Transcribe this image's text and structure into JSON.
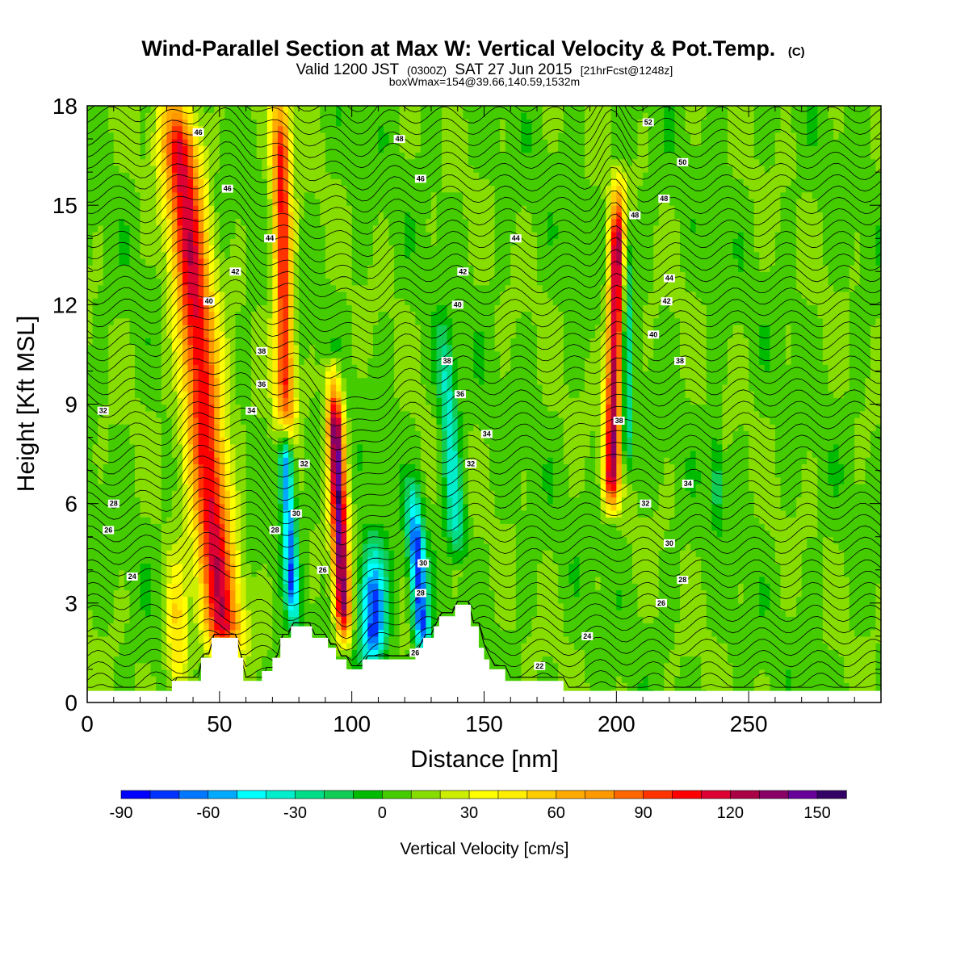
{
  "title": {
    "main": "Wind-Parallel Section at Max W: Vertical Velocity & Pot.Temp.",
    "copyright": "(C)",
    "valid_prefix": "Valid 1200 JST",
    "valid_z": "(0300Z)",
    "valid_date": "SAT 27 Jun 2015",
    "forecast": "[21hrFcst@1248z]",
    "box_info": "boxWmax=154@39.66,140.59,1532m"
  },
  "chart_data": {
    "type": "heatmap",
    "xlabel": "Distance [nm]",
    "ylabel": "Height [Kft MSL]",
    "xlim": [
      0,
      300
    ],
    "ylim": [
      0,
      18
    ],
    "x_ticks": [
      0,
      50,
      100,
      150,
      200,
      250
    ],
    "y_ticks": [
      0,
      3,
      6,
      9,
      12,
      15,
      18
    ],
    "colorbar": {
      "label": "Vertical Velocity [cm/s]",
      "min": -90,
      "max": 160,
      "step": 10,
      "ticks": [
        -90,
        -60,
        -30,
        0,
        30,
        60,
        90,
        120,
        150
      ],
      "colors": [
        "#0000ff",
        "#0033ff",
        "#0077ff",
        "#00aaff",
        "#00ffff",
        "#00eecc",
        "#00dd88",
        "#11cc55",
        "#00bb00",
        "#44cc00",
        "#88dd00",
        "#ccee00",
        "#ffff00",
        "#ffee00",
        "#ffcc00",
        "#ffaa00",
        "#ff9900",
        "#ff6600",
        "#ff3300",
        "#ff0000",
        "#dd0033",
        "#aa0044",
        "#880066",
        "#660099",
        "#330066"
      ]
    },
    "terrain_kft": [
      [
        0,
        0.35
      ],
      [
        32,
        0.35
      ],
      [
        32,
        0.65
      ],
      [
        43,
        0.65
      ],
      [
        43,
        1.35
      ],
      [
        47,
        1.35
      ],
      [
        47,
        1.95
      ],
      [
        57,
        1.95
      ],
      [
        57,
        1.35
      ],
      [
        59,
        1.35
      ],
      [
        59,
        0.65
      ],
      [
        66,
        0.65
      ],
      [
        66,
        0.95
      ],
      [
        70,
        0.95
      ],
      [
        70,
        1.35
      ],
      [
        73,
        1.35
      ],
      [
        73,
        1.95
      ],
      [
        77,
        1.95
      ],
      [
        77,
        2.3
      ],
      [
        85,
        2.3
      ],
      [
        85,
        1.95
      ],
      [
        91,
        1.95
      ],
      [
        91,
        1.65
      ],
      [
        94,
        1.65
      ],
      [
        94,
        1.3
      ],
      [
        98,
        1.3
      ],
      [
        98,
        1.0
      ],
      [
        104,
        1.0
      ],
      [
        104,
        1.3
      ],
      [
        124,
        1.3
      ],
      [
        124,
        1.65
      ],
      [
        127,
        1.65
      ],
      [
        127,
        1.95
      ],
      [
        131,
        1.95
      ],
      [
        131,
        2.3
      ],
      [
        133,
        2.3
      ],
      [
        133,
        2.6
      ],
      [
        139,
        2.6
      ],
      [
        139,
        2.95
      ],
      [
        145,
        2.95
      ],
      [
        145,
        2.3
      ],
      [
        148,
        2.3
      ],
      [
        148,
        1.65
      ],
      [
        150,
        1.65
      ],
      [
        150,
        1.3
      ],
      [
        152,
        1.3
      ],
      [
        152,
        1.0
      ],
      [
        158,
        1.0
      ],
      [
        158,
        0.65
      ],
      [
        180,
        0.65
      ],
      [
        180,
        0.35
      ],
      [
        300,
        0.35
      ]
    ],
    "updrafts": [
      {
        "x": 52,
        "z_bottom": 1.5,
        "z_top": 18,
        "peak": 105,
        "width": 7,
        "tilt": -1.1
      },
      {
        "x": 75,
        "z_bottom": 8.0,
        "z_top": 18,
        "peak": 95,
        "width": 3.5,
        "tilt": -0.2
      },
      {
        "x": 97,
        "z_bottom": 2.0,
        "z_top": 9.5,
        "peak": 135,
        "width": 3,
        "tilt": -0.5
      },
      {
        "x": 198,
        "z_bottom": 6.0,
        "z_top": 15.2,
        "peak": 120,
        "width": 3,
        "tilt": 0.3
      },
      {
        "x": 34,
        "z_bottom": 0.5,
        "z_top": 4.0,
        "peak": 45,
        "width": 4,
        "tilt": 0
      }
    ],
    "downdrafts": [
      {
        "x": 78,
        "z_bottom": 2.5,
        "z_top": 8.5,
        "peak": -70,
        "width": 2.5,
        "tilt": -0.6
      },
      {
        "x": 108,
        "z_bottom": 1.2,
        "z_top": 4.5,
        "peak": -85,
        "width": 5,
        "tilt": 0
      },
      {
        "x": 127,
        "z_bottom": 1.5,
        "z_top": 6.0,
        "peak": -85,
        "width": 3,
        "tilt": -0.8
      },
      {
        "x": 140,
        "z_bottom": 4.5,
        "z_top": 11.0,
        "peak": -45,
        "width": 3.5,
        "tilt": -0.8
      },
      {
        "x": 204,
        "z_bottom": 7.0,
        "z_top": 14.5,
        "peak": -40,
        "width": 2,
        "tilt": 0
      },
      {
        "x": 238,
        "z_bottom": 5.5,
        "z_top": 8.0,
        "peak": -30,
        "width": 2,
        "tilt": 0
      }
    ],
    "theta_contours": {
      "min": 22,
      "max": 52,
      "interval": 0.5,
      "labels": [
        {
          "text": "46",
          "x": 42,
          "z": 17.2
        },
        {
          "text": "46",
          "x": 53,
          "z": 15.5
        },
        {
          "text": "44",
          "x": 69,
          "z": 14.0
        },
        {
          "text": "42",
          "x": 56,
          "z": 13.0
        },
        {
          "text": "40",
          "x": 46,
          "z": 12.1
        },
        {
          "text": "38",
          "x": 66,
          "z": 10.6
        },
        {
          "text": "36",
          "x": 66,
          "z": 9.6
        },
        {
          "text": "34",
          "x": 62,
          "z": 8.8
        },
        {
          "text": "32",
          "x": 6,
          "z": 8.8
        },
        {
          "text": "32",
          "x": 82,
          "z": 7.2
        },
        {
          "text": "30",
          "x": 79,
          "z": 5.7
        },
        {
          "text": "28",
          "x": 71,
          "z": 5.2
        },
        {
          "text": "28",
          "x": 10,
          "z": 6.0
        },
        {
          "text": "26",
          "x": 8,
          "z": 5.2
        },
        {
          "text": "24",
          "x": 17,
          "z": 3.8
        },
        {
          "text": "26",
          "x": 89,
          "z": 4.0
        },
        {
          "text": "48",
          "x": 118,
          "z": 17.0
        },
        {
          "text": "46",
          "x": 126,
          "z": 15.8
        },
        {
          "text": "44",
          "x": 162,
          "z": 14.0
        },
        {
          "text": "42",
          "x": 142,
          "z": 13.0
        },
        {
          "text": "40",
          "x": 140,
          "z": 12.0
        },
        {
          "text": "38",
          "x": 136,
          "z": 10.3
        },
        {
          "text": "36",
          "x": 141,
          "z": 9.3
        },
        {
          "text": "34",
          "x": 151,
          "z": 8.1
        },
        {
          "text": "32",
          "x": 145,
          "z": 7.2
        },
        {
          "text": "30",
          "x": 127,
          "z": 4.2
        },
        {
          "text": "28",
          "x": 126,
          "z": 3.3
        },
        {
          "text": "26",
          "x": 124,
          "z": 1.5
        },
        {
          "text": "52",
          "x": 212,
          "z": 17.5
        },
        {
          "text": "50",
          "x": 225,
          "z": 16.3
        },
        {
          "text": "48",
          "x": 218,
          "z": 15.2
        },
        {
          "text": "48",
          "x": 207,
          "z": 14.7
        },
        {
          "text": "44",
          "x": 220,
          "z": 12.8
        },
        {
          "text": "42",
          "x": 219,
          "z": 12.1
        },
        {
          "text": "40",
          "x": 214,
          "z": 11.1
        },
        {
          "text": "38",
          "x": 224,
          "z": 10.3
        },
        {
          "text": "38",
          "x": 201,
          "z": 8.5
        },
        {
          "text": "34",
          "x": 227,
          "z": 6.6
        },
        {
          "text": "32",
          "x": 211,
          "z": 6.0
        },
        {
          "text": "30",
          "x": 220,
          "z": 4.8
        },
        {
          "text": "28",
          "x": 225,
          "z": 3.7
        },
        {
          "text": "26",
          "x": 217,
          "z": 3.0
        },
        {
          "text": "24",
          "x": 189,
          "z": 2.0
        },
        {
          "text": "22",
          "x": 171,
          "z": 1.1
        }
      ]
    }
  }
}
